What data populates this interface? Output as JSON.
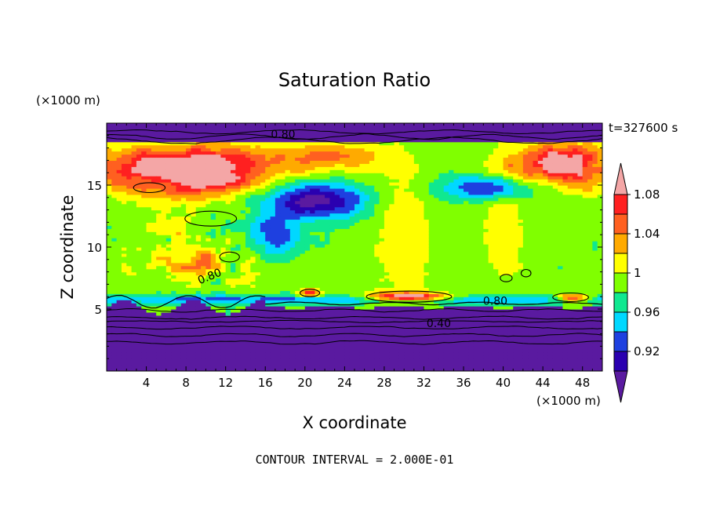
{
  "chart_data": {
    "type": "heatmap",
    "title": "Saturation Ratio",
    "xlabel": "X coordinate",
    "ylabel": "Z coordinate",
    "x_unit": "(×1000 m)",
    "y_unit": "(×1000 m)",
    "time_label": "t=327600 s",
    "footer": "CONTOUR INTERVAL = 2.000E-01",
    "xlim": [
      0,
      50
    ],
    "ylim": [
      0,
      20
    ],
    "x_ticks": [
      4,
      8,
      12,
      16,
      20,
      24,
      28,
      32,
      36,
      40,
      44,
      48
    ],
    "x_tick_labels": [
      "4",
      "8",
      "12",
      "16",
      "20",
      "24",
      "28",
      "32",
      "36",
      "40",
      "44",
      "48"
    ],
    "y_ticks": [
      5,
      10,
      15
    ],
    "y_tick_labels": [
      "5",
      "10",
      "15"
    ],
    "colorbar": {
      "levels": [
        0.9,
        0.92,
        0.94,
        0.96,
        0.98,
        1.0,
        1.02,
        1.04,
        1.06,
        1.08,
        1.1
      ],
      "colors": [
        "#5a1aa0",
        "#2a00b0",
        "#1e40e0",
        "#00d8ff",
        "#10e890",
        "#80ff00",
        "#ffff00",
        "#ffaa00",
        "#ff6020",
        "#ff2020",
        "#f4a6a6"
      ],
      "tick_labels": [
        "0.92",
        "0.96",
        "1",
        "1.04",
        "1.08"
      ]
    },
    "contour_labels": [
      "0.80",
      "0.80",
      "0.80",
      "0.40"
    ]
  }
}
